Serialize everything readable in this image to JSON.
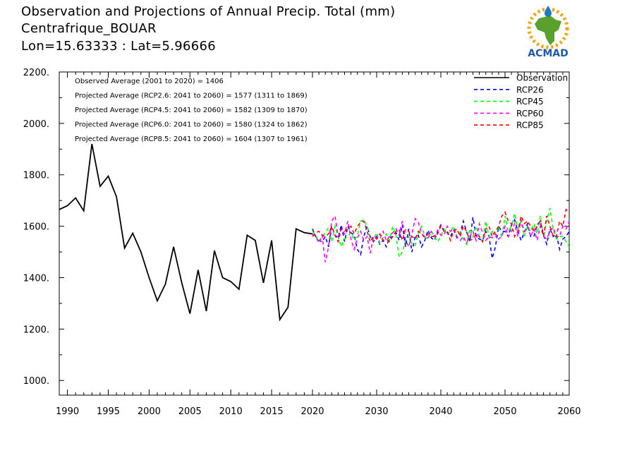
{
  "header": {
    "title_line1": "Observation and Projections of Annual Precip. Total (mm)",
    "title_line2": "Centrafrique_BOUAR",
    "title_line3": "Lon=15.63333 : Lat=5.96666"
  },
  "logo": {
    "text": "ACMAD",
    "colors": {
      "africa": "#5aa02c",
      "sun": "#f2a30f",
      "drop": "#1f78c8",
      "text": "#1f5aa6"
    }
  },
  "chart_data": {
    "type": "line",
    "xlim": [
      1989,
      2060
    ],
    "ylim": [
      943,
      2200
    ],
    "x_ticks": [
      "1990",
      "1995",
      "2000",
      "2005",
      "2010",
      "2015",
      "2020",
      "2030",
      "2040",
      "2050",
      "2060"
    ],
    "y_ticks": [
      "1000.",
      "1200.",
      "1400.",
      "1600.",
      "1800.",
      "2000.",
      "2200."
    ],
    "stats": [
      "Observed Average (2001 to 2020) = 1406",
      "Projected Average (RCP2.6: 2041 to 2060) = 1577 (1311 to 1869)",
      "Projected Average (RCP4.5: 2041 to 2060) = 1582 (1309 to 1870)",
      "Projected Average (RCP6.0: 2041 to 2060) = 1580 (1324 to 1862)",
      "Projected Average (RCP8.5: 2041 to 2060) = 1604 (1307 to 1961)"
    ],
    "legend_position": "top-right",
    "observation": {
      "name": "Observation",
      "color": "#000000",
      "x": [
        1989,
        1990,
        1991,
        1992,
        1993,
        1994,
        1995,
        1996,
        1997,
        1998,
        1999,
        2000,
        2001,
        2002,
        2003,
        2004,
        2005,
        2006,
        2007,
        2008,
        2009,
        2010,
        2011,
        2012,
        2013,
        2014,
        2015,
        2016,
        2017,
        2018,
        2019,
        2020
      ],
      "y": [
        1665,
        1680,
        1710,
        1660,
        1920,
        1755,
        1795,
        1715,
        1515,
        1573,
        1500,
        1400,
        1310,
        1375,
        1520,
        1380,
        1260,
        1430,
        1270,
        1505,
        1400,
        1385,
        1355,
        1565,
        1545,
        1380,
        1545,
        1237,
        1285,
        1590,
        1575,
        1570
      ]
    },
    "projections": {
      "x": [
        2020,
        2020.5,
        2021,
        2021.5,
        2022,
        2022.5,
        2023,
        2023.5,
        2024,
        2024.5,
        2025,
        2025.5,
        2026,
        2026.5,
        2027,
        2027.5,
        2028,
        2028.5,
        2029,
        2029.5,
        2030,
        2030.5,
        2031,
        2031.5,
        2032,
        2032.5,
        2033,
        2033.5,
        2034,
        2034.5,
        2035,
        2035.5,
        2036,
        2036.5,
        2037,
        2037.5,
        2038,
        2038.5,
        2039,
        2039.5,
        2040,
        2040.5,
        2041,
        2041.5,
        2042,
        2042.5,
        2043,
        2043.5,
        2044,
        2044.5,
        2045,
        2045.5,
        2046,
        2046.5,
        2047,
        2047.5,
        2048,
        2048.5,
        2049,
        2049.5,
        2050,
        2050.5,
        2051,
        2051.5,
        2052,
        2052.5,
        2053,
        2053.5,
        2054,
        2054.5,
        2055,
        2055.5,
        2056,
        2056.5,
        2057,
        2057.5,
        2058,
        2058.5,
        2059,
        2059.5,
        2060
      ],
      "series": [
        {
          "name": "RCP26",
          "color": "#0000ff",
          "y": [
            1590,
            1560,
            1545,
            1540,
            1560,
            1520,
            1600,
            1565,
            1555,
            1605,
            1540,
            1600,
            1575,
            1565,
            1510,
            1490,
            1560,
            1600,
            1560,
            1540,
            1560,
            1530,
            1545,
            1520,
            1555,
            1560,
            1575,
            1545,
            1605,
            1520,
            1590,
            1500,
            1560,
            1565,
            1520,
            1545,
            1585,
            1555,
            1545,
            1580,
            1605,
            1580,
            1575,
            1560,
            1585,
            1555,
            1570,
            1620,
            1580,
            1540,
            1635,
            1560,
            1550,
            1545,
            1580,
            1560,
            1475,
            1520,
            1600,
            1580,
            1580,
            1560,
            1605,
            1625,
            1580,
            1545,
            1575,
            1610,
            1560,
            1560,
            1605,
            1620,
            1565,
            1530,
            1590,
            1560,
            1570,
            1510,
            1550,
            1560,
            1580
          ]
        },
        {
          "name": "RCP45",
          "color": "#00ff00",
          "y": [
            1580,
            1565,
            1540,
            1560,
            1575,
            1595,
            1540,
            1600,
            1560,
            1520,
            1550,
            1560,
            1575,
            1545,
            1565,
            1620,
            1625,
            1600,
            1550,
            1545,
            1575,
            1535,
            1555,
            1570,
            1545,
            1600,
            1565,
            1480,
            1500,
            1545,
            1560,
            1530,
            1525,
            1575,
            1600,
            1560,
            1550,
            1580,
            1560,
            1540,
            1560,
            1590,
            1570,
            1580,
            1600,
            1560,
            1575,
            1550,
            1530,
            1590,
            1560,
            1600,
            1560,
            1540,
            1620,
            1560,
            1580,
            1560,
            1600,
            1555,
            1640,
            1580,
            1600,
            1650,
            1590,
            1620,
            1560,
            1600,
            1580,
            1610,
            1570,
            1640,
            1560,
            1620,
            1670,
            1590,
            1550,
            1560,
            1560,
            1540,
            1520
          ]
        },
        {
          "name": "RCP60",
          "color": "#ff00ff",
          "y": [
            1570,
            1560,
            1535,
            1565,
            1460,
            1520,
            1620,
            1640,
            1560,
            1590,
            1570,
            1620,
            1550,
            1510,
            1555,
            1580,
            1545,
            1560,
            1495,
            1560,
            1555,
            1550,
            1580,
            1545,
            1560,
            1575,
            1590,
            1565,
            1620,
            1545,
            1520,
            1570,
            1630,
            1615,
            1570,
            1560,
            1555,
            1580,
            1560,
            1585,
            1565,
            1565,
            1600,
            1580,
            1590,
            1560,
            1545,
            1560,
            1535,
            1560,
            1580,
            1545,
            1610,
            1575,
            1545,
            1560,
            1555,
            1570,
            1550,
            1560,
            1600,
            1560,
            1580,
            1610,
            1560,
            1625,
            1580,
            1600,
            1560,
            1590,
            1545,
            1600,
            1560,
            1550,
            1580,
            1595,
            1560,
            1560,
            1600,
            1590,
            1620
          ]
        },
        {
          "name": "RCP85",
          "color": "#ff0000",
          "y": [
            1560,
            1575,
            1580,
            1565,
            1560,
            1570,
            1600,
            1565,
            1540,
            1590,
            1580,
            1590,
            1600,
            1570,
            1600,
            1615,
            1620,
            1580,
            1540,
            1560,
            1550,
            1570,
            1545,
            1550,
            1540,
            1560,
            1580,
            1585,
            1545,
            1590,
            1580,
            1560,
            1550,
            1580,
            1570,
            1555,
            1570,
            1560,
            1560,
            1570,
            1600,
            1580,
            1580,
            1545,
            1580,
            1590,
            1560,
            1600,
            1580,
            1545,
            1550,
            1570,
            1560,
            1540,
            1590,
            1600,
            1560,
            1580,
            1600,
            1640,
            1655,
            1620,
            1610,
            1560,
            1580,
            1640,
            1610,
            1620,
            1600,
            1580,
            1600,
            1620,
            1560,
            1640,
            1600,
            1560,
            1560,
            1620,
            1600,
            1665,
            1655
          ]
        }
      ]
    }
  }
}
